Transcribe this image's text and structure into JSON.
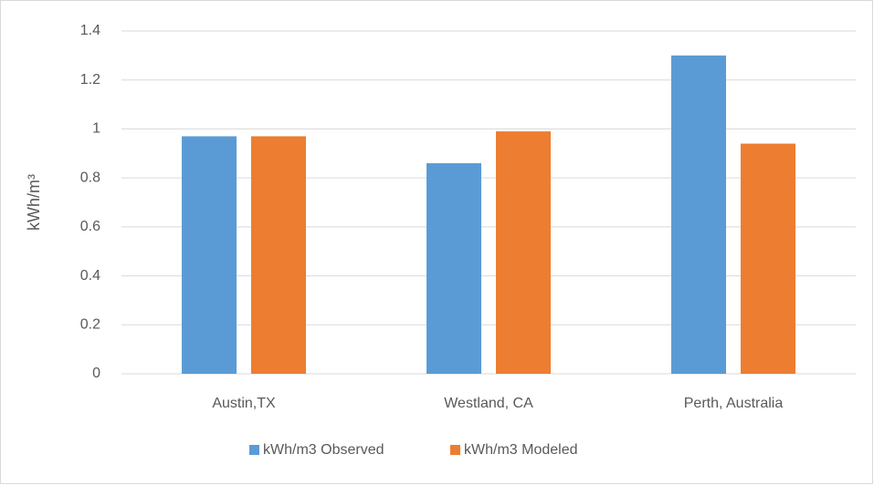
{
  "chart_data": {
    "type": "bar",
    "y_label": "kWh/m³",
    "categories": [
      "Austin,TX",
      "Westland, CA",
      "Perth, Australia"
    ],
    "series": [
      {
        "name": "kWh/m3 Observed",
        "color": "#5b9bd5",
        "values": [
          0.97,
          0.86,
          1.3
        ]
      },
      {
        "name": "kWh/m3 Modeled",
        "color": "#ed7d31",
        "values": [
          0.97,
          0.99,
          0.94
        ]
      }
    ],
    "ylim": [
      0,
      1.4
    ],
    "yticks": [
      0,
      0.2,
      0.4,
      0.6,
      0.8,
      1,
      1.2,
      1.4
    ],
    "grid": true,
    "legend": "bottom"
  }
}
